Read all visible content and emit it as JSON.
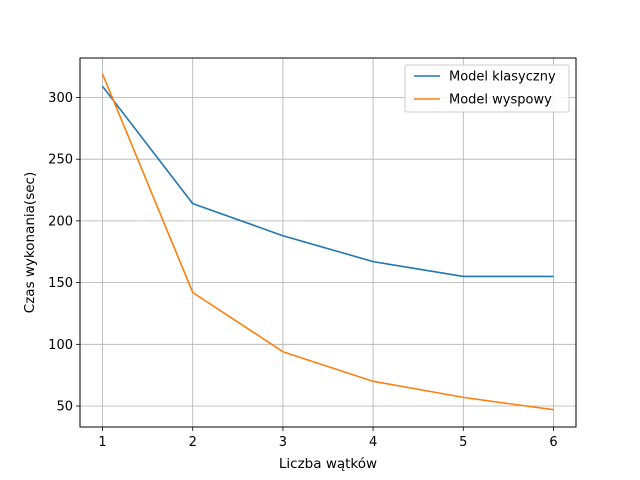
{
  "chart_data": {
    "type": "line",
    "title": "",
    "xlabel": "Liczba wątków",
    "ylabel": "Czas wykonania(sec)",
    "x": [
      1,
      2,
      3,
      4,
      5,
      6
    ],
    "series": [
      {
        "name": "Model klasyczny",
        "color": "#1f77b4",
        "values": [
          309,
          214,
          188,
          167,
          155,
          155
        ]
      },
      {
        "name": "Model wyspowy",
        "color": "#ff7f0e",
        "values": [
          319,
          142,
          94,
          70,
          57,
          47
        ]
      }
    ],
    "xticks": [
      "1",
      "2",
      "3",
      "4",
      "5",
      "6"
    ],
    "yticks": [
      "50",
      "100",
      "150",
      "200",
      "250",
      "300"
    ],
    "xlim": [
      0.75,
      6.25
    ],
    "ylim": [
      33,
      332
    ],
    "grid": true,
    "legend_position": "top-right"
  }
}
